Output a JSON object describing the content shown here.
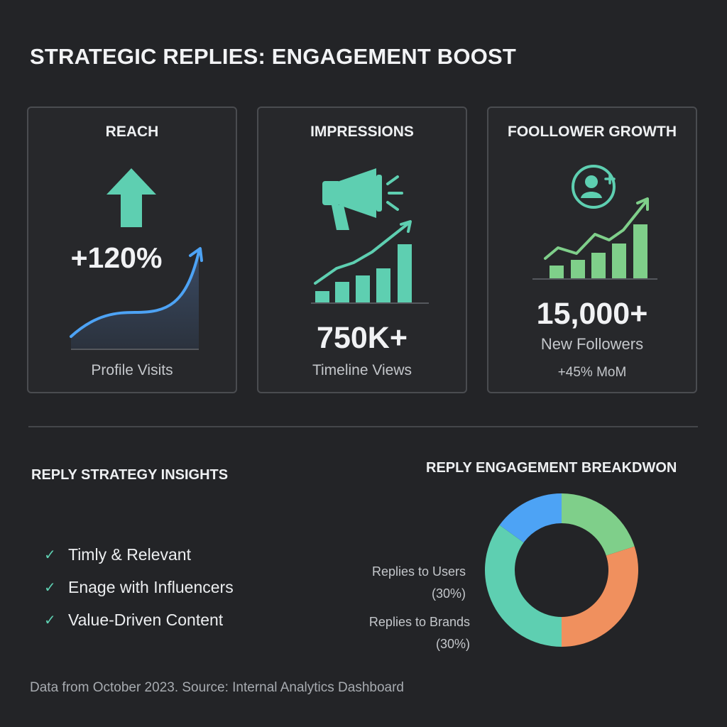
{
  "header": {
    "title": "STRATEGIC REPLIES: ENGAGEMENT BOOST"
  },
  "cards": [
    {
      "title": "REACH",
      "value": "+120%",
      "label": "Profile Visits",
      "icon": "up-arrow-icon"
    },
    {
      "title": "IMPRESSIONS",
      "value": "750K+",
      "label": "Timeline Views",
      "icon": "megaphone-icon"
    },
    {
      "title": "FOOLLOWER GROWTH",
      "value": "15,000+",
      "label": "New Followers",
      "sublabel": "+45% MoM",
      "icon": "add-user-icon"
    }
  ],
  "insights": {
    "title": "REPLY STRATEGY INSIGHTS",
    "items": [
      "Timly & Relevant",
      "Enage with Influencers",
      "Value-Driven Content"
    ],
    "icon": "check-icon"
  },
  "colors": {
    "background": "#232427",
    "teal": "#5ecfb1",
    "green": "#7fcf8a",
    "blue": "#4da3f5",
    "orange": "#f0905e"
  },
  "chart_data": {
    "type": "pie",
    "title": "REPLY ENGAGEMENT BREAKDWON",
    "donut": true,
    "slices": [
      {
        "value": 20,
        "color": "#7fcf8a"
      },
      {
        "value": 30,
        "color": "#f0905e"
      },
      {
        "value": 35,
        "color": "#5ecfb1"
      },
      {
        "value": 15,
        "color": "#4da3f5"
      }
    ],
    "labels": [
      {
        "name": "Replies to Users",
        "pct": "(30%)"
      },
      {
        "name": "Replies to Brands",
        "pct": "(30%)"
      }
    ]
  },
  "footer": {
    "note": "Data from October 2023. Source: Internal Analytics Dashboard"
  }
}
